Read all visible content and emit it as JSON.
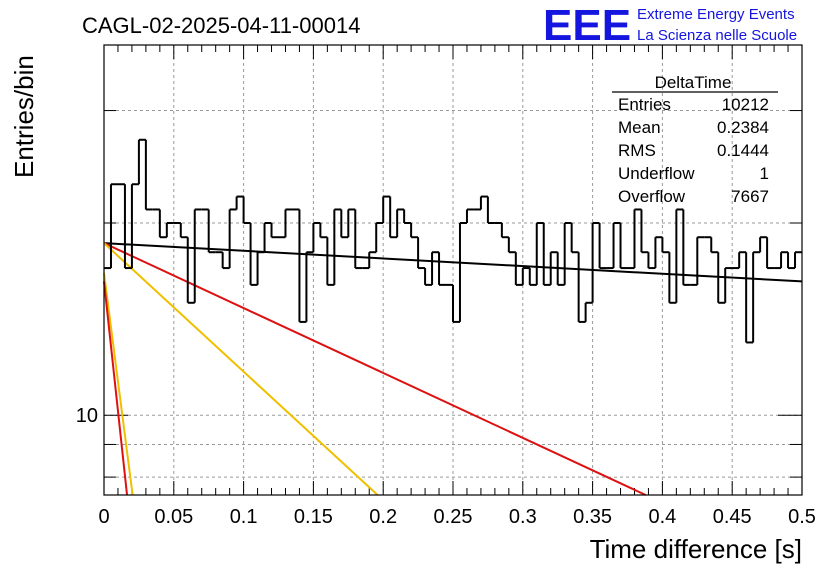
{
  "title": "CAGL-02-2025-04-11-00014",
  "logo": {
    "mark": "EEE",
    "line1": "Extreme Energy Events",
    "line2": "La Scienza nelle Scuole",
    "color": "#1515e0"
  },
  "stats": {
    "name": "DeltaTime",
    "rows": [
      {
        "label": "Entries",
        "value": "10212"
      },
      {
        "label": "Mean",
        "value": "0.2384"
      },
      {
        "label": "RMS",
        "value": "0.1444"
      },
      {
        "label": "Underflow",
        "value": "1"
      },
      {
        "label": "Overflow",
        "value": "7667"
      }
    ]
  },
  "chart_data": {
    "type": "histogram",
    "title": "CAGL-02-2025-04-11-00014",
    "xlabel": "Time difference [s]",
    "ylabel": "Entries/bin",
    "xlim": [
      0,
      0.5
    ],
    "ylim": [
      7.5,
      38
    ],
    "yscale": "log",
    "grid": true,
    "x_ticks": [
      "0",
      "0.05",
      "0.1",
      "0.15",
      "0.2",
      "0.25",
      "0.3",
      "0.35",
      "0.4",
      "0.45",
      "0.5"
    ],
    "y_ticks": [
      "10"
    ],
    "bin_width": 0.005,
    "histogram": {
      "color": "#000000",
      "values": [
        17,
        23,
        23,
        17,
        23,
        27,
        21,
        21,
        19,
        20,
        20,
        19,
        15,
        21,
        21,
        18,
        18,
        17,
        21,
        22,
        20,
        16,
        18,
        20,
        19,
        19,
        21,
        21,
        14,
        18,
        20,
        19,
        16,
        21,
        19,
        21,
        17,
        17,
        18,
        20,
        22,
        19,
        21,
        20,
        19,
        17,
        16,
        18,
        16,
        16,
        14,
        20,
        21,
        21,
        22,
        20,
        20,
        19,
        18,
        16,
        17,
        16,
        20,
        16,
        18,
        16,
        20,
        18,
        14,
        15,
        20,
        17,
        17,
        20,
        17,
        17,
        21,
        18,
        17,
        19,
        18,
        15,
        21,
        16,
        16,
        19,
        19,
        18,
        15,
        17,
        17,
        18,
        13,
        18,
        19,
        17,
        17,
        18,
        17,
        18
      ]
    },
    "fits": [
      {
        "color": "#000000",
        "type": "exp",
        "y0": 18.6,
        "y1": 16.2
      },
      {
        "color": "#dd1111",
        "type": "exp",
        "y0": 18.6,
        "x_at_bottom": 0.388
      },
      {
        "color": "#f0c000",
        "type": "exp",
        "y0": 18.6,
        "x_at_bottom": 0.196
      },
      {
        "color": "#f0c000",
        "type": "exp",
        "y0": 16.7,
        "x_at_bottom": 0.0205
      },
      {
        "color": "#dd1111",
        "type": "exp",
        "y0": 16.2,
        "x_at_bottom": 0.0165
      }
    ]
  }
}
